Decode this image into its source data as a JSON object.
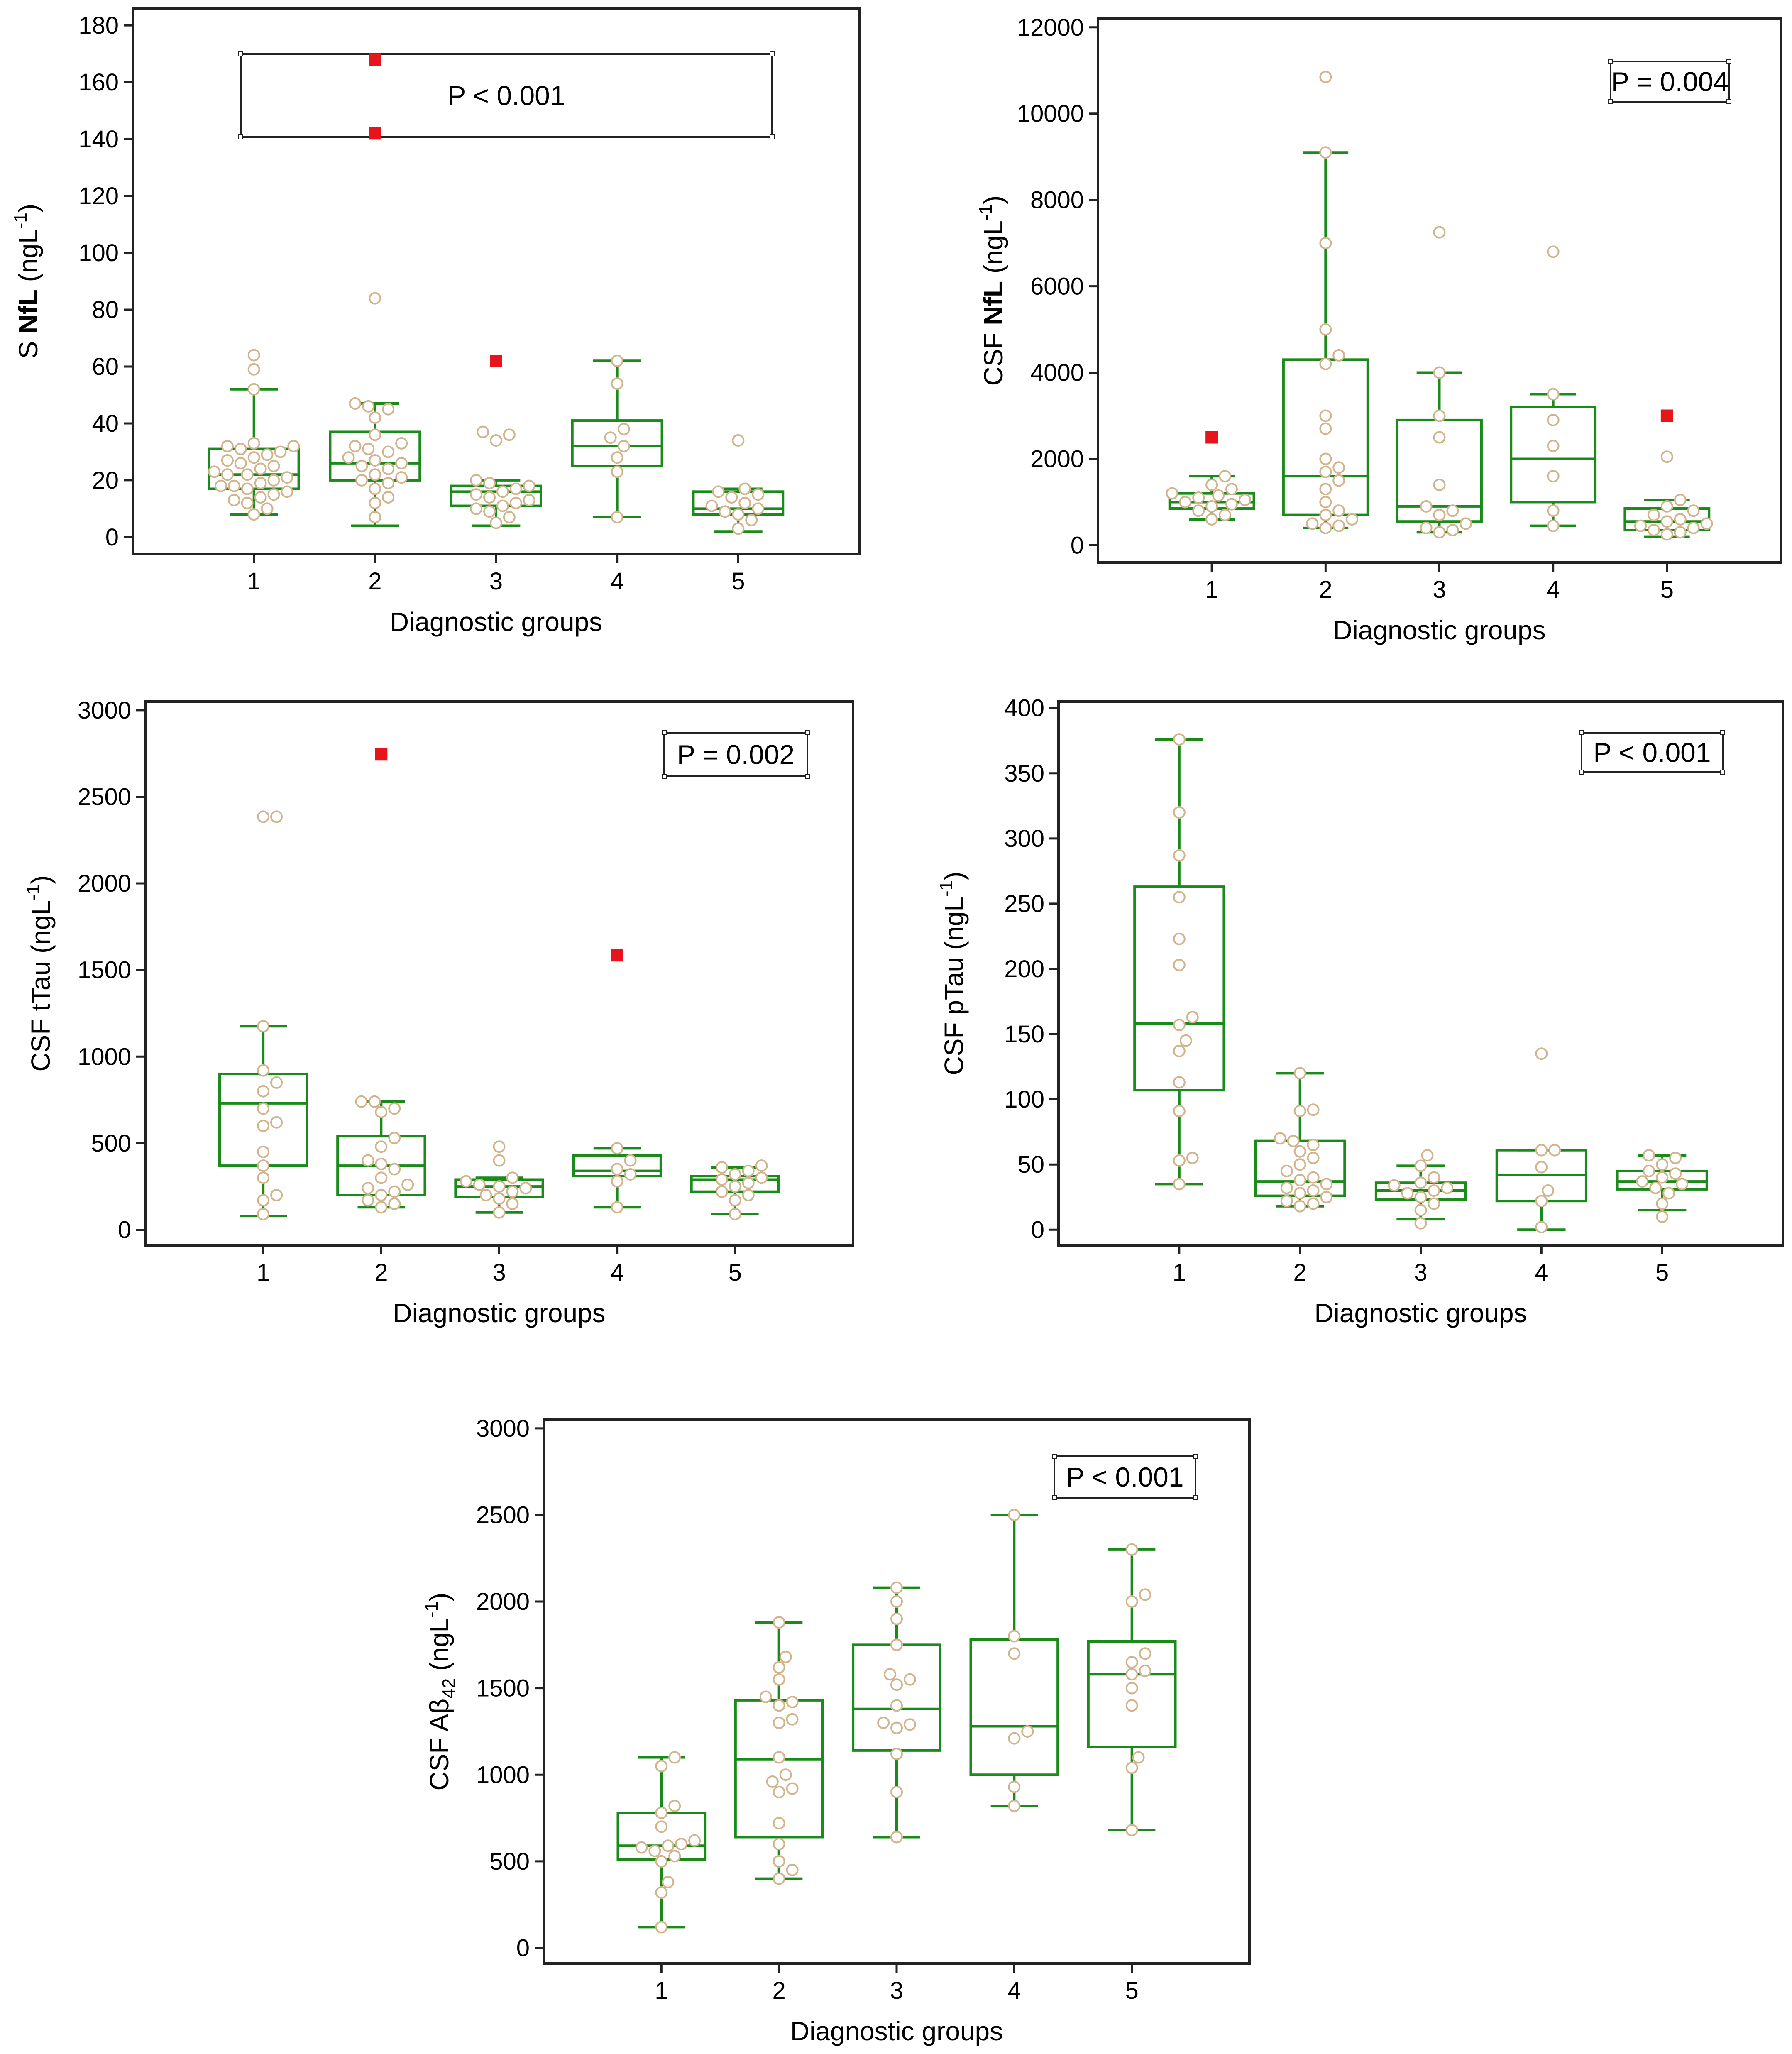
{
  "colors": {
    "box": "#1a8a1a",
    "point_stroke": "#d2b48c",
    "point_fill": "#ffffff",
    "outlier": "#e8141c",
    "axis": "#222222"
  },
  "chart_data": [
    {
      "type": "box",
      "id": "snfl",
      "ylabel_prefix": "S ",
      "ylabel_bold": "NfL",
      "ylabel_suffix": " (ngL",
      "ylabel_sup": "-1",
      "ylabel_close": ")",
      "xlabel": "Diagnostic groups",
      "pvalue": "P < 0.001",
      "categories": [
        "1",
        "2",
        "3",
        "4",
        "5"
      ],
      "ylim": [
        -6,
        186
      ],
      "yticks": [
        0,
        20,
        40,
        60,
        80,
        100,
        120,
        140,
        160,
        180
      ],
      "groups": [
        {
          "box": {
            "whisker_low": 8,
            "q1": 17,
            "median": 22,
            "q3": 31,
            "whisker_high": 52
          },
          "points": [
            8,
            10,
            12,
            13,
            14,
            15,
            16,
            17,
            18,
            18,
            19,
            20,
            21,
            22,
            22,
            23,
            24,
            25,
            26,
            27,
            28,
            29,
            30,
            31,
            32,
            32,
            33,
            52,
            59,
            64
          ],
          "outliers": []
        },
        {
          "box": {
            "whisker_low": 4,
            "q1": 20,
            "median": 26,
            "q3": 37,
            "whisker_high": 47
          },
          "points": [
            7,
            12,
            14,
            17,
            19,
            20,
            21,
            22,
            24,
            25,
            26,
            27,
            28,
            30,
            31,
            32,
            33,
            36,
            42,
            45,
            46,
            47,
            84
          ],
          "outliers": [
            142,
            168
          ]
        },
        {
          "box": {
            "whisker_low": 4,
            "q1": 11,
            "median": 16,
            "q3": 18,
            "whisker_high": 20
          },
          "points": [
            5,
            7,
            9,
            10,
            11,
            12,
            13,
            14,
            15,
            16,
            17,
            18,
            19,
            20,
            34,
            36,
            37
          ],
          "outliers": [
            62
          ]
        },
        {
          "box": {
            "whisker_low": 7,
            "q1": 25,
            "median": 32,
            "q3": 41,
            "whisker_high": 62
          },
          "points": [
            7,
            23,
            28,
            32,
            35,
            38,
            54,
            62
          ],
          "outliers": []
        },
        {
          "box": {
            "whisker_low": 2,
            "q1": 8,
            "median": 10,
            "q3": 16,
            "whisker_high": 17
          },
          "points": [
            3,
            6,
            8,
            9,
            10,
            11,
            12,
            14,
            15,
            16,
            17,
            34
          ],
          "outliers": []
        }
      ]
    },
    {
      "type": "box",
      "id": "csfnfl",
      "ylabel_prefix": "CSF ",
      "ylabel_bold": "NfL",
      "ylabel_suffix": " (ngL",
      "ylabel_sup": "-1",
      "ylabel_close": ")",
      "xlabel": "Diagnostic groups",
      "pvalue": "P = 0.004",
      "categories": [
        "1",
        "2",
        "3",
        "4",
        "5"
      ],
      "ylim": [
        -400,
        12200
      ],
      "yticks": [
        0,
        2000,
        4000,
        6000,
        8000,
        10000,
        12000
      ],
      "groups": [
        {
          "box": {
            "whisker_low": 600,
            "q1": 850,
            "median": 1000,
            "q3": 1200,
            "whisker_high": 1600
          },
          "points": [
            600,
            700,
            800,
            900,
            950,
            1000,
            1050,
            1100,
            1150,
            1200,
            1300,
            1400,
            1600
          ],
          "outliers": [
            2500
          ]
        },
        {
          "box": {
            "whisker_low": 400,
            "q1": 700,
            "median": 1600,
            "q3": 4300,
            "whisker_high": 9100
          },
          "points": [
            400,
            450,
            500,
            600,
            700,
            800,
            1000,
            1300,
            1500,
            1700,
            1800,
            2000,
            2700,
            3000,
            4200,
            4400,
            5000,
            7000,
            9100,
            10850
          ],
          "outliers": []
        },
        {
          "box": {
            "whisker_low": 300,
            "q1": 550,
            "median": 900,
            "q3": 2900,
            "whisker_high": 4000
          },
          "points": [
            300,
            350,
            400,
            500,
            700,
            800,
            900,
            1400,
            2500,
            3000,
            4000,
            7250
          ],
          "outliers": []
        },
        {
          "box": {
            "whisker_low": 450,
            "q1": 1000,
            "median": 2000,
            "q3": 3200,
            "whisker_high": 3500
          },
          "points": [
            450,
            800,
            1600,
            2300,
            2900,
            3500,
            6800
          ],
          "outliers": []
        },
        {
          "box": {
            "whisker_low": 200,
            "q1": 350,
            "median": 550,
            "q3": 850,
            "whisker_high": 1050
          },
          "points": [
            250,
            300,
            350,
            400,
            450,
            500,
            550,
            600,
            700,
            800,
            900,
            1050,
            2050
          ],
          "outliers": [
            3000
          ]
        }
      ]
    },
    {
      "type": "box",
      "id": "ttau",
      "ylabel_prefix": "CSF tTau",
      "ylabel_bold": "",
      "ylabel_suffix": " (ngL",
      "ylabel_sup": "-1",
      "ylabel_close": ")",
      "xlabel": "Diagnostic groups",
      "pvalue": "P = 0.002",
      "categories": [
        "1",
        "2",
        "3",
        "4",
        "5"
      ],
      "ylim": [
        -90,
        3050
      ],
      "yticks": [
        0,
        500,
        1000,
        1500,
        2000,
        2500,
        3000
      ],
      "groups": [
        {
          "box": {
            "whisker_low": 80,
            "q1": 370,
            "median": 730,
            "q3": 900,
            "whisker_high": 1175
          },
          "points": [
            90,
            170,
            200,
            300,
            370,
            450,
            600,
            620,
            700,
            800,
            850,
            920,
            1175,
            2385,
            2385
          ],
          "outliers": []
        },
        {
          "box": {
            "whisker_low": 130,
            "q1": 200,
            "median": 370,
            "q3": 540,
            "whisker_high": 740
          },
          "points": [
            130,
            150,
            170,
            200,
            220,
            240,
            260,
            300,
            350,
            380,
            400,
            480,
            530,
            680,
            700,
            740,
            740
          ],
          "outliers": [
            2745
          ]
        },
        {
          "box": {
            "whisker_low": 100,
            "q1": 190,
            "median": 250,
            "q3": 290,
            "whisker_high": 300
          },
          "points": [
            100,
            150,
            180,
            200,
            220,
            240,
            250,
            260,
            280,
            300,
            400,
            480
          ],
          "outliers": []
        },
        {
          "box": {
            "whisker_low": 130,
            "q1": 310,
            "median": 340,
            "q3": 430,
            "whisker_high": 470
          },
          "points": [
            130,
            280,
            320,
            350,
            400,
            470
          ],
          "outliers": [
            1585
          ]
        },
        {
          "box": {
            "whisker_low": 90,
            "q1": 220,
            "median": 290,
            "q3": 310,
            "whisker_high": 360
          },
          "points": [
            90,
            170,
            200,
            220,
            250,
            270,
            290,
            300,
            320,
            340,
            360,
            370
          ],
          "outliers": []
        }
      ]
    },
    {
      "type": "box",
      "id": "ptau",
      "ylabel_prefix": "CSF pTau",
      "ylabel_bold": "",
      "ylabel_suffix": " (ngL",
      "ylabel_sup": "-1",
      "ylabel_close": ")",
      "xlabel": "Diagnostic groups",
      "pvalue": "P < 0.001",
      "categories": [
        "1",
        "2",
        "3",
        "4",
        "5"
      ],
      "ylim": [
        -12,
        405
      ],
      "yticks": [
        0,
        50,
        100,
        150,
        200,
        250,
        300,
        350,
        400
      ],
      "groups": [
        {
          "box": {
            "whisker_low": 35,
            "q1": 107,
            "median": 158,
            "q3": 263,
            "whisker_high": 376
          },
          "points": [
            35,
            53,
            55,
            91,
            113,
            137,
            145,
            157,
            163,
            203,
            223,
            255,
            287,
            320,
            376
          ],
          "outliers": []
        },
        {
          "box": {
            "whisker_low": 18,
            "q1": 26,
            "median": 37,
            "q3": 68,
            "whisker_high": 120
          },
          "points": [
            18,
            20,
            22,
            25,
            28,
            30,
            32,
            35,
            38,
            40,
            45,
            50,
            55,
            60,
            65,
            68,
            70,
            91,
            92,
            120
          ],
          "outliers": []
        },
        {
          "box": {
            "whisker_low": 8,
            "q1": 23,
            "median": 30,
            "q3": 36,
            "whisker_high": 49
          },
          "points": [
            5,
            15,
            20,
            25,
            28,
            30,
            32,
            34,
            36,
            40,
            49,
            57
          ],
          "outliers": []
        },
        {
          "box": {
            "whisker_low": 0,
            "q1": 22,
            "median": 42,
            "q3": 61,
            "whisker_high": 61
          },
          "points": [
            2,
            22,
            30,
            48,
            61,
            61,
            135
          ],
          "outliers": []
        },
        {
          "box": {
            "whisker_low": 15,
            "q1": 31,
            "median": 37,
            "q3": 45,
            "whisker_high": 57
          },
          "points": [
            10,
            20,
            28,
            32,
            35,
            37,
            40,
            43,
            45,
            50,
            55,
            57
          ],
          "outliers": []
        }
      ]
    },
    {
      "type": "box",
      "id": "abeta",
      "ylabel_prefix": "CSF A",
      "ylabel_bold": "",
      "ylabel_greek": "β",
      "ylabel_sub": "42",
      "ylabel_suffix": " (ngL",
      "ylabel_sup": "-1",
      "ylabel_close": ")",
      "xlabel": "Diagnostic groups",
      "pvalue": "P < 0.001",
      "categories": [
        "1",
        "2",
        "3",
        "4",
        "5"
      ],
      "ylim": [
        -90,
        3050
      ],
      "yticks": [
        0,
        500,
        1000,
        1500,
        2000,
        2500,
        3000
      ],
      "groups": [
        {
          "box": {
            "whisker_low": 120,
            "q1": 510,
            "median": 590,
            "q3": 780,
            "whisker_high": 1100
          },
          "points": [
            120,
            320,
            380,
            500,
            530,
            560,
            580,
            590,
            600,
            620,
            700,
            780,
            820,
            1050,
            1100
          ],
          "outliers": []
        },
        {
          "box": {
            "whisker_low": 400,
            "q1": 640,
            "median": 1090,
            "q3": 1430,
            "whisker_high": 1880
          },
          "points": [
            400,
            450,
            500,
            600,
            720,
            900,
            920,
            960,
            1000,
            1100,
            1300,
            1320,
            1400,
            1420,
            1450,
            1550,
            1620,
            1680,
            1880
          ],
          "outliers": []
        },
        {
          "box": {
            "whisker_low": 640,
            "q1": 1140,
            "median": 1380,
            "q3": 1750,
            "whisker_high": 2080
          },
          "points": [
            640,
            900,
            1120,
            1270,
            1290,
            1300,
            1400,
            1520,
            1550,
            1580,
            1750,
            1900,
            2000,
            2080
          ],
          "outliers": []
        },
        {
          "box": {
            "whisker_low": 820,
            "q1": 1000,
            "median": 1280,
            "q3": 1780,
            "whisker_high": 2500
          },
          "points": [
            820,
            930,
            1210,
            1250,
            1700,
            1800,
            2500
          ],
          "outliers": []
        },
        {
          "box": {
            "whisker_low": 680,
            "q1": 1160,
            "median": 1580,
            "q3": 1770,
            "whisker_high": 2300
          },
          "points": [
            680,
            1040,
            1100,
            1400,
            1500,
            1580,
            1600,
            1650,
            1700,
            2000,
            2040,
            2300
          ],
          "outliers": []
        }
      ]
    }
  ]
}
